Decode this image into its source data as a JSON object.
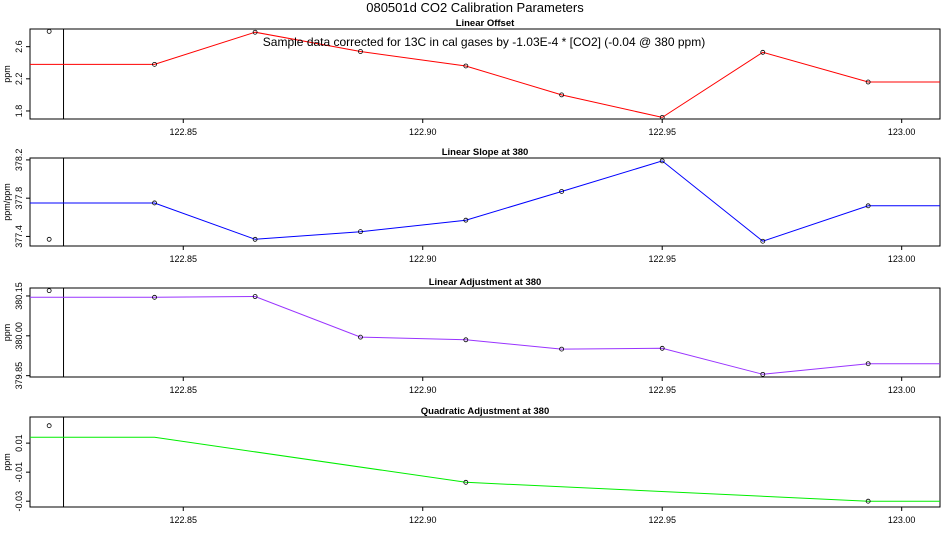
{
  "main_title": "080501d   CO2 Calibration Parameters",
  "note": "Sample data corrected for 13C in cal gases by -1.03E-4 * [CO2] (-0.04 @ 380 ppm)",
  "chart_data": [
    {
      "type": "line",
      "title": "Linear Offset",
      "ylabel": "ppm",
      "color": "#ff0000",
      "xlim": [
        122.818,
        123.008
      ],
      "ylim": [
        1.7,
        2.82
      ],
      "xticks": [
        "122.85",
        "122.90",
        "122.95",
        "123.00"
      ],
      "yticks": [
        "1.8",
        "2.2",
        "2.6"
      ],
      "x": [
        122.844,
        122.865,
        122.887,
        122.909,
        122.929,
        122.95,
        122.971,
        122.993
      ],
      "y": [
        2.38,
        2.78,
        2.54,
        2.36,
        2.0,
        1.72,
        2.53,
        2.16
      ],
      "extend_left": 122.818,
      "extend_right": 123.008,
      "outlier": {
        "x": 122.822,
        "y": 2.79
      },
      "vline_x": 122.825
    },
    {
      "type": "line",
      "title": "Linear Slope at 380",
      "ylabel": "ppm/ppm",
      "color": "#0000ff",
      "xlim": [
        122.818,
        123.008
      ],
      "ylim": [
        377.3,
        378.22
      ],
      "xticks": [
        "122.85",
        "122.90",
        "122.95",
        "123.00"
      ],
      "yticks": [
        "377.4",
        "377.8",
        "378.2"
      ],
      "x": [
        122.844,
        122.865,
        122.887,
        122.909,
        122.929,
        122.95,
        122.971,
        122.993
      ],
      "y": [
        377.75,
        377.37,
        377.45,
        377.57,
        377.87,
        378.19,
        377.35,
        377.72
      ],
      "extend_left": 122.818,
      "extend_right": 123.008,
      "outlier": {
        "x": 122.822,
        "y": 377.37
      },
      "vline_x": 122.825
    },
    {
      "type": "line",
      "title": "Linear Adjustment at 380",
      "ylabel": "ppm",
      "color": "#9933ff",
      "xlim": [
        122.818,
        123.008
      ],
      "ylim": [
        379.845,
        380.18
      ],
      "xticks": [
        "122.85",
        "122.90",
        "122.95",
        "123.00"
      ],
      "yticks": [
        "379.85",
        "380.00",
        "380.15"
      ],
      "x": [
        122.844,
        122.865,
        122.887,
        122.909,
        122.929,
        122.95,
        122.971,
        122.993
      ],
      "y": [
        380.145,
        380.148,
        379.995,
        379.985,
        379.95,
        379.953,
        379.855,
        379.895
      ],
      "extend_left": 122.818,
      "extend_right": 123.008,
      "outlier": {
        "x": 122.822,
        "y": 380.17
      },
      "vline_x": 122.825
    },
    {
      "type": "line",
      "title": "Quadratic Adjustment at 380",
      "ylabel": "ppm",
      "color": "#00ee00",
      "xlim": [
        122.818,
        123.008
      ],
      "ylim": [
        -0.034,
        0.028
      ],
      "xticks": [
        "122.85",
        "122.90",
        "122.95",
        "123.00"
      ],
      "yticks": [
        "-0.03",
        "-0.01",
        "0.01"
      ],
      "x": [
        122.844,
        122.909,
        122.993
      ],
      "y": [
        0.014,
        -0.017,
        -0.03
      ],
      "markers": [
        false,
        true,
        true
      ],
      "extend_left": 122.818,
      "extend_right": 123.008,
      "outlier": {
        "x": 122.822,
        "y": 0.022
      },
      "vline_x": 122.825
    }
  ]
}
